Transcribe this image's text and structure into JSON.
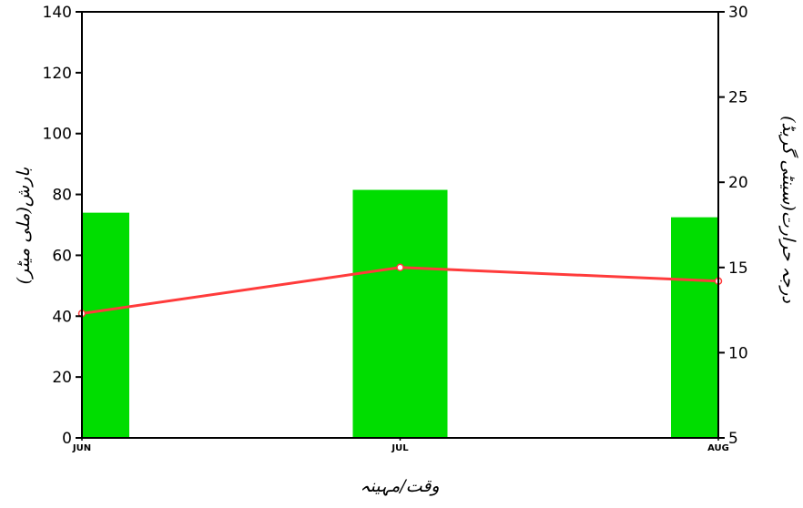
{
  "chart_data": {
    "type": "bar",
    "title": "",
    "categories": [
      "JUN",
      "JUL",
      "AUG"
    ],
    "xlabel": "وقت/مہینہ",
    "ylabel": "بارش(ملی میٹر)",
    "y2label": "درجہ حرارت(سینٹی گریڈ)",
    "ylim": [
      0,
      140
    ],
    "y2lim": [
      5,
      30
    ],
    "yticks": [
      "0",
      "20",
      "40",
      "60",
      "80",
      "100",
      "120",
      "140"
    ],
    "y2ticks": [
      "5",
      "10",
      "15",
      "20",
      "25",
      "30"
    ],
    "grid": false,
    "legend": "none",
    "series": [
      {
        "type": "bar",
        "axis": "left",
        "values": [
          74,
          81.5,
          72.5
        ],
        "color": "#00dd00"
      },
      {
        "type": "line",
        "axis": "right",
        "values": [
          12.3,
          15,
          14.2
        ],
        "color": "#ff3b3b"
      }
    ]
  }
}
